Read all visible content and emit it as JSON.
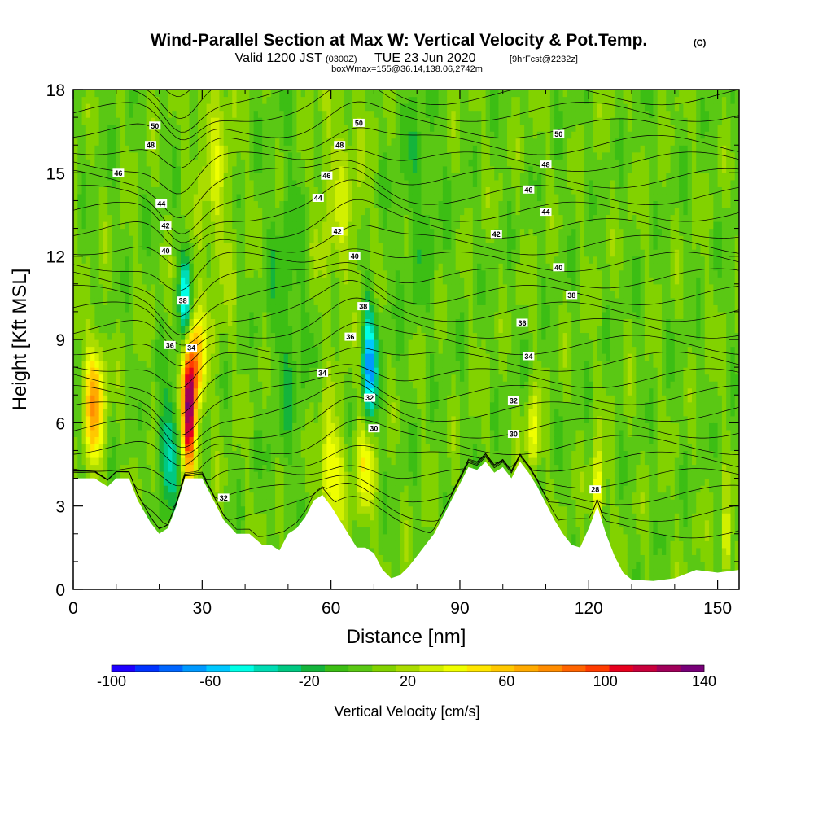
{
  "header": {
    "title": "Wind-Parallel Section at Max W: Vertical Velocity & Pot.Temp.",
    "copyright": "(C)",
    "valid_prefix": "Valid 1200 JST",
    "valid_zulu": "(0300Z)",
    "valid_date": "TUE 23 Jun 2020",
    "forecast": "[9hrFcst@2232z]",
    "box_info": "boxWmax=155@36.14,138.06,2742m"
  },
  "chart_data": {
    "type": "heatmap",
    "xlabel": "Distance [nm]",
    "ylabel": "Height [Kft MSL]",
    "xlim": [
      0,
      155
    ],
    "ylim": [
      0,
      18
    ],
    "x_ticks": [
      0,
      30,
      60,
      90,
      120,
      150
    ],
    "y_ticks": [
      0,
      3,
      6,
      9,
      12,
      15,
      18
    ],
    "colorbar": {
      "title": "Vertical Velocity [cm/s]",
      "min": -100,
      "max": 140,
      "step": 10,
      "tick_labels": [
        "-100",
        "-60",
        "-20",
        "20",
        "60",
        "100",
        "140"
      ],
      "colors": [
        "#1e00ff",
        "#0033ff",
        "#0066ff",
        "#0099ff",
        "#00c8ff",
        "#00ffe6",
        "#00dcb4",
        "#00c882",
        "#14b43c",
        "#3cbe14",
        "#5ac814",
        "#82d200",
        "#aadc00",
        "#d2f000",
        "#f0ff00",
        "#ffe600",
        "#ffc800",
        "#ffaa00",
        "#ff8c00",
        "#ff6400",
        "#ff3c00",
        "#e6001e",
        "#c8003c",
        "#a0005a",
        "#780078"
      ]
    },
    "terrain_kft": [
      [
        0,
        4.0
      ],
      [
        5,
        4.0
      ],
      [
        8,
        3.7
      ],
      [
        10,
        4.0
      ],
      [
        13,
        4.0
      ],
      [
        15,
        3.2
      ],
      [
        18,
        2.4
      ],
      [
        20,
        2.0
      ],
      [
        22,
        2.2
      ],
      [
        24,
        3.0
      ],
      [
        26,
        4.0
      ],
      [
        28,
        4.0
      ],
      [
        30,
        4.0
      ],
      [
        32,
        3.4
      ],
      [
        35,
        2.5
      ],
      [
        38,
        2.0
      ],
      [
        41,
        2.0
      ],
      [
        44,
        1.6
      ],
      [
        46,
        1.6
      ],
      [
        48,
        1.4
      ],
      [
        50,
        2.0
      ],
      [
        52,
        2.2
      ],
      [
        54,
        2.6
      ],
      [
        56,
        3.2
      ],
      [
        58,
        3.4
      ],
      [
        60,
        3.0
      ],
      [
        62,
        2.5
      ],
      [
        64,
        2.0
      ],
      [
        66,
        1.5
      ],
      [
        68,
        1.5
      ],
      [
        70,
        1.3
      ],
      [
        72,
        0.7
      ],
      [
        74,
        0.4
      ],
      [
        76,
        0.5
      ],
      [
        78,
        0.8
      ],
      [
        80,
        1.2
      ],
      [
        82,
        1.6
      ],
      [
        84,
        2.0
      ],
      [
        86,
        2.6
      ],
      [
        88,
        3.2
      ],
      [
        90,
        3.8
      ],
      [
        92,
        4.4
      ],
      [
        94,
        4.3
      ],
      [
        96,
        4.6
      ],
      [
        98,
        4.2
      ],
      [
        100,
        4.4
      ],
      [
        102,
        4.0
      ],
      [
        104,
        4.6
      ],
      [
        106,
        4.2
      ],
      [
        108,
        3.7
      ],
      [
        110,
        3.1
      ],
      [
        112,
        2.5
      ],
      [
        114,
        2.0
      ],
      [
        116,
        1.6
      ],
      [
        118,
        1.5
      ],
      [
        120,
        2.2
      ],
      [
        122,
        3.0
      ],
      [
        124,
        2.0
      ],
      [
        126,
        1.2
      ],
      [
        128,
        0.6
      ],
      [
        130,
        0.35
      ],
      [
        135,
        0.3
      ],
      [
        140,
        0.4
      ],
      [
        145,
        0.7
      ],
      [
        150,
        0.6
      ],
      [
        155,
        0.7
      ]
    ],
    "contour_labels": [
      {
        "text": "50",
        "x": 19,
        "y": 16.7
      },
      {
        "text": "48",
        "x": 18,
        "y": 16.0
      },
      {
        "text": "46",
        "x": 10.5,
        "y": 15.0
      },
      {
        "text": "44",
        "x": 20.5,
        "y": 13.9
      },
      {
        "text": "42",
        "x": 21.5,
        "y": 13.1
      },
      {
        "text": "40",
        "x": 21.5,
        "y": 12.2
      },
      {
        "text": "38",
        "x": 25.5,
        "y": 10.4
      },
      {
        "text": "36",
        "x": 22.5,
        "y": 8.8
      },
      {
        "text": "34",
        "x": 27.5,
        "y": 8.7
      },
      {
        "text": "32",
        "x": 35.0,
        "y": 3.3
      },
      {
        "text": "50",
        "x": 66.5,
        "y": 16.8
      },
      {
        "text": "48",
        "x": 62.0,
        "y": 16.0
      },
      {
        "text": "46",
        "x": 59.0,
        "y": 14.9
      },
      {
        "text": "44",
        "x": 57.0,
        "y": 14.1
      },
      {
        "text": "42",
        "x": 61.5,
        "y": 12.9
      },
      {
        "text": "40",
        "x": 65.5,
        "y": 12.0
      },
      {
        "text": "38",
        "x": 67.5,
        "y": 10.2
      },
      {
        "text": "36",
        "x": 64.5,
        "y": 9.1
      },
      {
        "text": "34",
        "x": 58.0,
        "y": 7.8
      },
      {
        "text": "32",
        "x": 69.0,
        "y": 6.9
      },
      {
        "text": "30",
        "x": 70.0,
        "y": 5.8
      },
      {
        "text": "50",
        "x": 113.0,
        "y": 16.4
      },
      {
        "text": "48",
        "x": 110.0,
        "y": 15.3
      },
      {
        "text": "46",
        "x": 106.0,
        "y": 14.4
      },
      {
        "text": "44",
        "x": 110.0,
        "y": 13.6
      },
      {
        "text": "42",
        "x": 98.5,
        "y": 12.8
      },
      {
        "text": "40",
        "x": 113.0,
        "y": 11.6
      },
      {
        "text": "38",
        "x": 116.0,
        "y": 10.6
      },
      {
        "text": "36",
        "x": 104.5,
        "y": 9.6
      },
      {
        "text": "34",
        "x": 106.0,
        "y": 8.4
      },
      {
        "text": "32",
        "x": 102.5,
        "y": 6.8
      },
      {
        "text": "30",
        "x": 102.5,
        "y": 5.6
      },
      {
        "text": "28",
        "x": 121.5,
        "y": 3.6
      }
    ]
  }
}
